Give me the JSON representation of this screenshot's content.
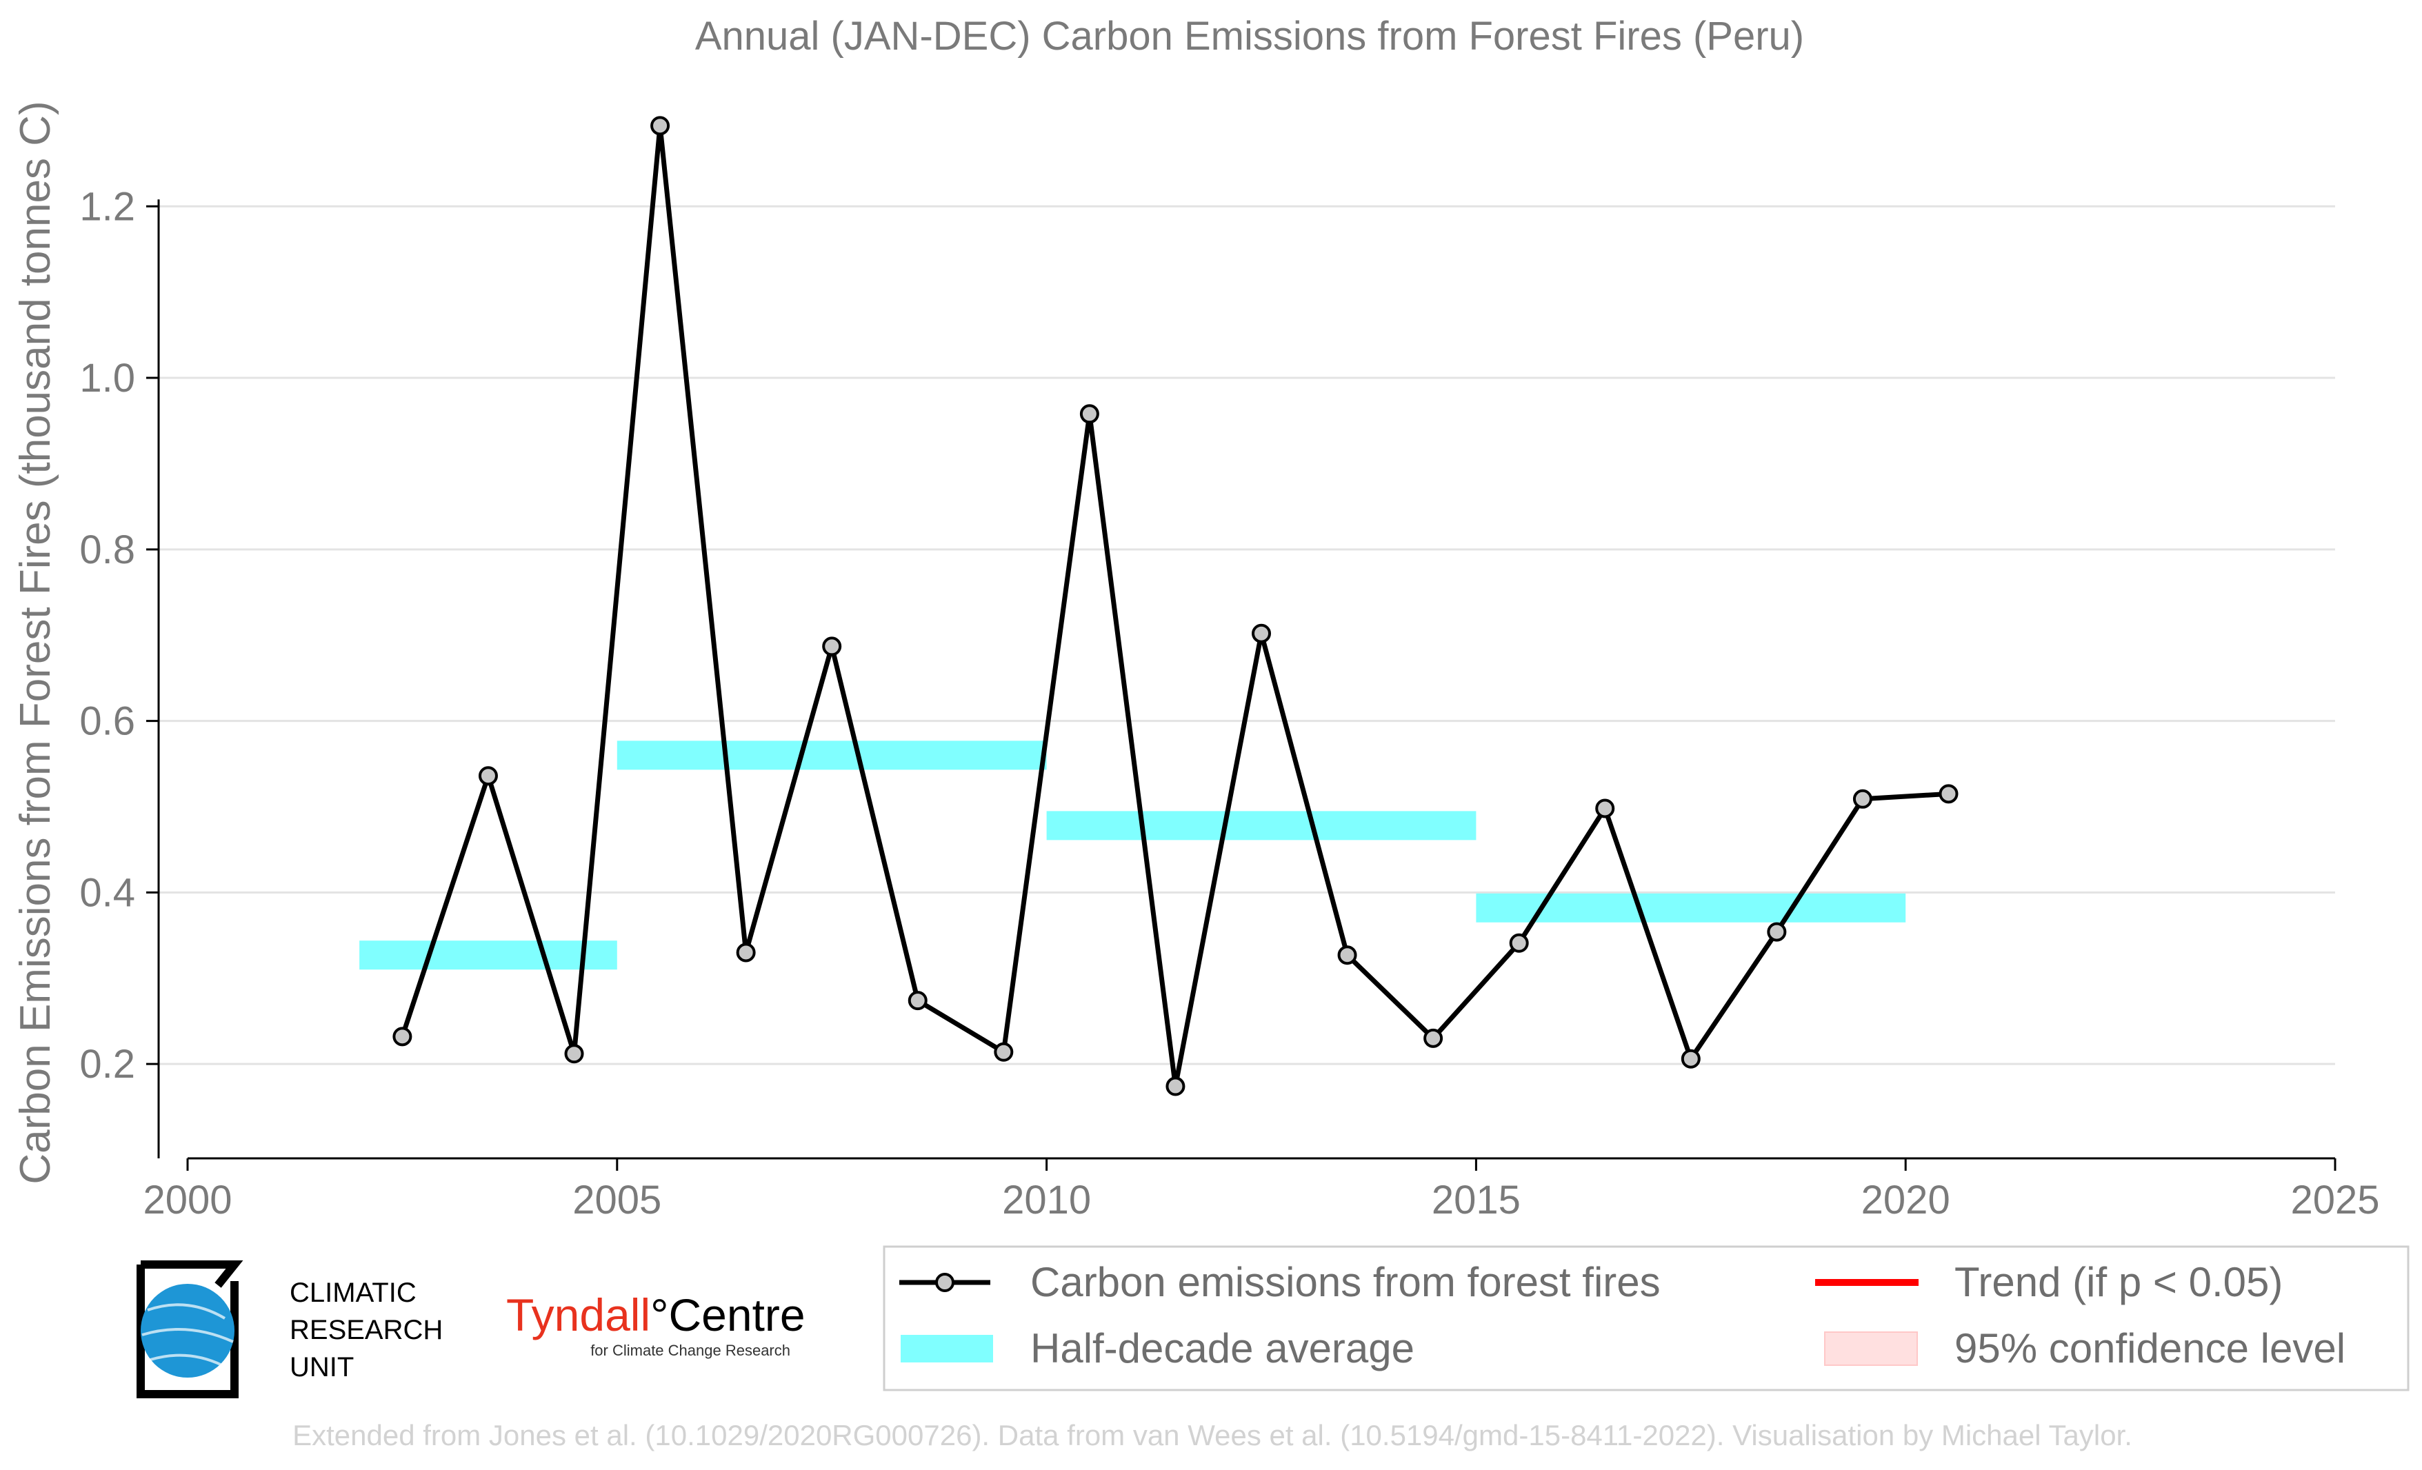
{
  "chart_data": {
    "type": "line",
    "title": "Annual (JAN-DEC) Carbon Emissions from Forest Fires (Peru)",
    "xlabel": "",
    "ylabel": "Carbon Emissions from Forest Fires (thousand tonnes C)",
    "xlim": [
      2000,
      2025
    ],
    "ylim": [
      0.09,
      1.32
    ],
    "x_ticks": [
      2000,
      2005,
      2010,
      2015,
      2020,
      2025
    ],
    "y_ticks": [
      0.2,
      0.4,
      0.6,
      0.8,
      1.0,
      1.2
    ],
    "y_tick_labels": [
      "0.2",
      "0.4",
      "0.6",
      "0.8",
      "1.0",
      "1.2"
    ],
    "grid": "horizontal",
    "series": [
      {
        "name": "Carbon emissions from forest fires",
        "color": "#000000",
        "marker_fill": "#c8c8c8",
        "x": [
          2002.5,
          2003.5,
          2004.5,
          2005.5,
          2006.5,
          2007.5,
          2008.5,
          2009.5,
          2010.5,
          2011.5,
          2012.5,
          2013.5,
          2014.5,
          2015.5,
          2016.5,
          2017.5,
          2018.5,
          2019.5,
          2020.5
        ],
        "values": [
          0.232,
          0.536,
          0.212,
          1.294,
          0.33,
          0.687,
          0.274,
          0.214,
          0.958,
          0.174,
          0.702,
          0.327,
          0.23,
          0.341,
          0.498,
          0.206,
          0.354,
          0.509,
          0.515
        ]
      }
    ],
    "half_decade_averages": {
      "name": "Half-decade average",
      "color": "#80ffff",
      "segments": [
        {
          "start": 2002,
          "end": 2005,
          "value": 0.327
        },
        {
          "start": 2005,
          "end": 2010,
          "value": 0.56
        },
        {
          "start": 2010,
          "end": 2015,
          "value": 0.478
        },
        {
          "start": 2015,
          "end": 2020,
          "value": 0.382
        }
      ]
    },
    "legend": {
      "placement": "bottom-right",
      "entries": [
        {
          "label": "Carbon emissions from forest fires",
          "kind": "line-marker",
          "color": "#000000"
        },
        {
          "label": "Trend (if p < 0.05)",
          "kind": "line",
          "color": "#ff0000"
        },
        {
          "label": "Half-decade average",
          "kind": "band",
          "color": "#80ffff"
        },
        {
          "label": "95% confidence level",
          "kind": "band",
          "color": "#ffe0e0"
        }
      ]
    }
  },
  "logos": {
    "cru_line1": "CLIMATIC",
    "cru_line2": "RESEARCH",
    "cru_line3": "UNIT",
    "tyndall_name": "Tyndall",
    "tyndall_centre": "°Centre",
    "tyndall_sub": "for Climate Change Research"
  },
  "footer": {
    "credit": "Extended from Jones et al. (10.1029/2020RG000726). Data from van Wees et al. (10.5194/gmd-15-8411-2022). Visualisation by Michael Taylor."
  }
}
